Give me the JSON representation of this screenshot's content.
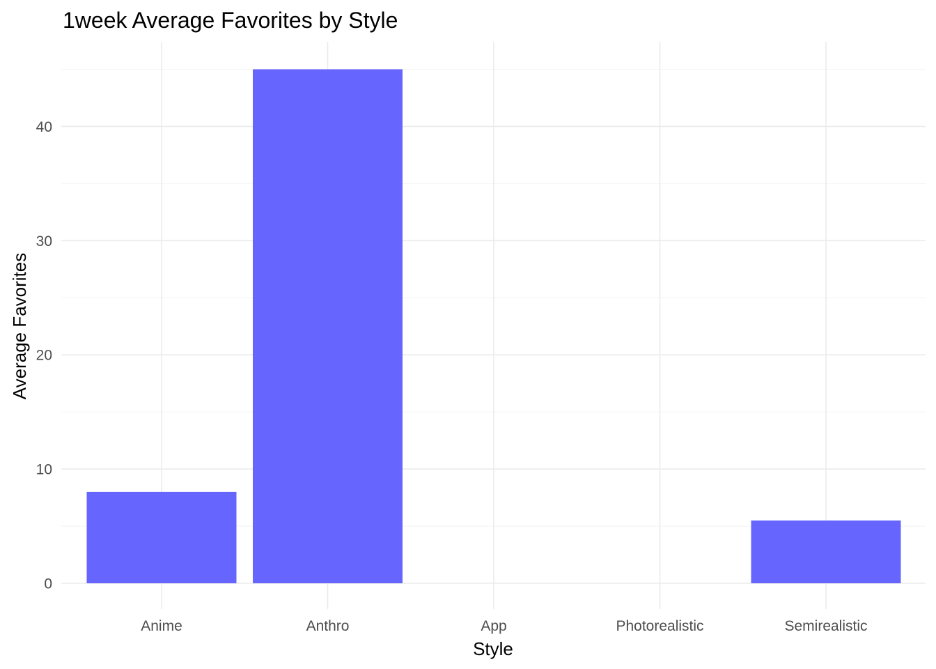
{
  "chart_data": {
    "type": "bar",
    "title": "1week Average Favorites by Style",
    "xlabel": "Style",
    "ylabel": "Average Favorites",
    "categories": [
      "Anime",
      "Anthro",
      "App",
      "Photorealistic",
      "Semirealistic"
    ],
    "values": [
      8,
      45,
      0,
      0,
      5.5
    ],
    "ylim": [
      0,
      47.25
    ],
    "yticks": [
      0,
      10,
      20,
      30,
      40
    ],
    "grid": true,
    "legend": "none",
    "bar_color": "#6666ff"
  }
}
